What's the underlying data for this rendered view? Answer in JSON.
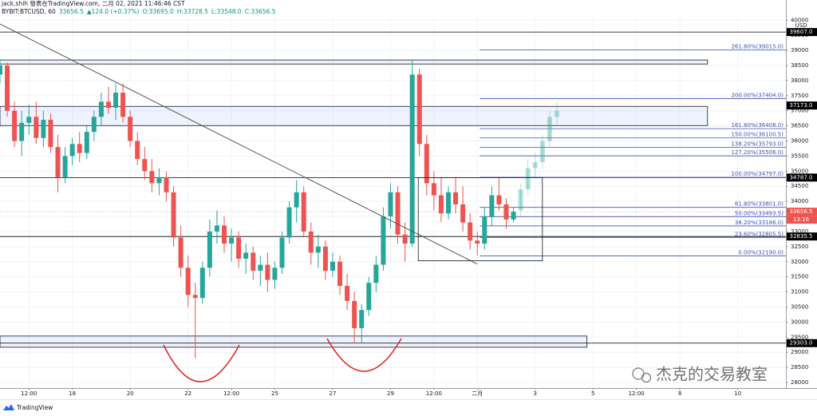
{
  "chart_data": {
    "type": "candlestick",
    "title": "jack.shih 發表在TradingView.com, 二月 02, 2021 11:46:46 CST",
    "info": [
      "BYBIT:BTCUSD, 60",
      "33656.5",
      "▲124.0 (+0.37%)",
      "O:33695.0",
      "H:33728.5",
      "L:33548.0",
      "C:33656.5"
    ],
    "currency": "USD",
    "up_color": "#26a69a",
    "down_color": "#ef5350",
    "xlim": [
      -36,
      616
    ],
    "ylim": [
      27815,
      40140
    ],
    "grid": true,
    "xticks": [
      {
        "value": -12,
        "label": "12:00"
      },
      {
        "value": 24,
        "label": "18"
      },
      {
        "value": 72,
        "label": "20"
      },
      {
        "value": 120,
        "label": "22"
      },
      {
        "value": 156,
        "label": "12:00"
      },
      {
        "value": 192,
        "label": "25"
      },
      {
        "value": 240,
        "label": "27"
      },
      {
        "value": 288,
        "label": "29"
      },
      {
        "value": 324,
        "label": "12:00"
      },
      {
        "value": 360,
        "label": "二月"
      },
      {
        "value": 408,
        "label": "3"
      },
      {
        "value": 456,
        "label": "5"
      },
      {
        "value": 492,
        "label": "12:00"
      },
      {
        "value": 528,
        "label": "8"
      },
      {
        "value": 576,
        "label": "10"
      }
    ],
    "yticks": [
      28000,
      28500,
      29000,
      29500,
      30000,
      30500,
      31000,
      31500,
      32000,
      32500,
      33000,
      33500,
      34000,
      34500,
      35000,
      35500,
      36000,
      36500,
      37000,
      37500,
      38000,
      38500,
      39000,
      39500,
      40000
    ],
    "candles": [
      [
        -36,
        38200,
        38700,
        37900,
        38500
      ],
      [
        -30,
        38500,
        38600,
        36800,
        37000
      ],
      [
        -24,
        37000,
        37300,
        35800,
        36000
      ],
      [
        -18,
        36000,
        37000,
        35500,
        36600
      ],
      [
        -12,
        36600,
        37200,
        36200,
        36800
      ],
      [
        -6,
        36800,
        37300,
        35900,
        36100
      ],
      [
        0,
        36100,
        37000,
        35800,
        36700
      ],
      [
        6,
        36700,
        36900,
        35600,
        35800
      ],
      [
        12,
        35800,
        36200,
        34300,
        34800
      ],
      [
        18,
        34800,
        35800,
        34600,
        35500
      ],
      [
        24,
        35500,
        36100,
        35200,
        35900
      ],
      [
        30,
        35900,
        36300,
        35300,
        35600
      ],
      [
        36,
        35600,
        36500,
        35400,
        36300
      ],
      [
        42,
        36300,
        37000,
        36000,
        36800
      ],
      [
        48,
        36800,
        37600,
        36500,
        37300
      ],
      [
        54,
        37300,
        37800,
        36900,
        37100
      ],
      [
        60,
        37100,
        37900,
        36700,
        37600
      ],
      [
        66,
        37600,
        37900,
        36600,
        36800
      ],
      [
        72,
        36800,
        37000,
        35800,
        36000
      ],
      [
        78,
        36000,
        36300,
        35200,
        35400
      ],
      [
        84,
        35400,
        35800,
        34700,
        35000
      ],
      [
        90,
        35000,
        35400,
        34300,
        34600
      ],
      [
        96,
        34600,
        35100,
        34200,
        34800
      ],
      [
        102,
        34800,
        35000,
        34000,
        34300
      ],
      [
        108,
        34300,
        34500,
        32500,
        32800
      ],
      [
        114,
        32800,
        33200,
        31500,
        31800
      ],
      [
        120,
        31800,
        32200,
        30500,
        30900
      ],
      [
        126,
        30900,
        31300,
        28800,
        30800
      ],
      [
        132,
        30800,
        32000,
        30600,
        31800
      ],
      [
        138,
        31800,
        33400,
        31500,
        33000
      ],
      [
        144,
        33000,
        33700,
        32600,
        33200
      ],
      [
        150,
        33200,
        33500,
        32300,
        32600
      ],
      [
        156,
        32600,
        33100,
        32000,
        32800
      ],
      [
        162,
        32800,
        33000,
        31800,
        32100
      ],
      [
        168,
        32100,
        32600,
        31600,
        32300
      ],
      [
        174,
        32300,
        32500,
        31400,
        31700
      ],
      [
        180,
        31700,
        32200,
        31200,
        31900
      ],
      [
        186,
        31900,
        32300,
        31000,
        31400
      ],
      [
        192,
        31400,
        32000,
        31100,
        31800
      ],
      [
        198,
        31800,
        33000,
        31600,
        32800
      ],
      [
        204,
        32800,
        34000,
        32600,
        33800
      ],
      [
        210,
        33800,
        34700,
        33300,
        34300
      ],
      [
        216,
        34300,
        34500,
        32800,
        33000
      ],
      [
        222,
        33000,
        33300,
        31900,
        32300
      ],
      [
        228,
        32300,
        32900,
        31800,
        32500
      ],
      [
        234,
        32500,
        32700,
        31400,
        31700
      ],
      [
        240,
        31700,
        32300,
        31500,
        32000
      ],
      [
        246,
        32000,
        32200,
        30900,
        31200
      ],
      [
        252,
        31200,
        31600,
        30400,
        30700
      ],
      [
        258,
        30700,
        31000,
        29300,
        29800
      ],
      [
        264,
        29800,
        30600,
        29300,
        30400
      ],
      [
        270,
        30400,
        31500,
        30200,
        31300
      ],
      [
        276,
        31300,
        32200,
        31000,
        31900
      ],
      [
        282,
        31900,
        33800,
        31700,
        33500
      ],
      [
        288,
        33500,
        34600,
        33100,
        34300
      ],
      [
        294,
        34300,
        34500,
        32600,
        32900
      ],
      [
        300,
        32900,
        33300,
        32000,
        32600
      ],
      [
        306,
        32600,
        38700,
        32500,
        38200
      ],
      [
        312,
        38200,
        38400,
        35500,
        35900
      ],
      [
        318,
        35900,
        36200,
        34200,
        34600
      ],
      [
        324,
        34600,
        35000,
        33700,
        34200
      ],
      [
        330,
        34200,
        34800,
        33300,
        33600
      ],
      [
        336,
        33600,
        34500,
        33400,
        34300
      ],
      [
        342,
        34300,
        34800,
        33600,
        33900
      ],
      [
        348,
        33900,
        34500,
        33000,
        33300
      ],
      [
        354,
        33300,
        33600,
        32400,
        32700
      ],
      [
        360,
        32700,
        33000,
        32200,
        32600
      ],
      [
        366,
        32600,
        33800,
        32400,
        33500
      ],
      [
        372,
        33500,
        34500,
        33200,
        34200
      ],
      [
        378,
        34200,
        34800,
        33700,
        33900
      ],
      [
        384,
        33900,
        34100,
        33100,
        33400
      ],
      [
        390,
        33400,
        33800,
        33300,
        33656.5
      ]
    ],
    "projection": [
      [
        396,
        33700,
        34600,
        33500,
        34400
      ],
      [
        402,
        34400,
        35400,
        34200,
        35100
      ],
      [
        408,
        35100,
        35600,
        34800,
        35300
      ],
      [
        414,
        35300,
        36200,
        35100,
        36000
      ],
      [
        420,
        36000,
        37000,
        35800,
        36800
      ],
      [
        426,
        36800,
        37300,
        36500,
        37000
      ]
    ],
    "zones": [
      {
        "from": 38549,
        "to": 38682,
        "x_end": 551
      },
      {
        "from": 36509,
        "to": 37145,
        "x_end": 551
      },
      {
        "from": 29167,
        "to": 29538,
        "x_end": 451
      }
    ],
    "trendline": [
      [
        -36,
        39875
      ],
      [
        360,
        31923
      ]
    ],
    "range_box": {
      "x": [
        311,
        414
      ],
      "y": [
        32030,
        34786
      ]
    },
    "fib": {
      "x_start": 362,
      "color": "#3f51b5",
      "levels": [
        {
          "value": 39015,
          "label": "261.80%(39015.0)"
        },
        {
          "value": 37404,
          "label": "200.00%(37404.0)"
        },
        {
          "value": 36408,
          "label": "161.80%(36408.0)"
        },
        {
          "value": 36100.5,
          "label": "150.00%(36100.5)"
        },
        {
          "value": 35793,
          "label": "138.20%(35793.0)"
        },
        {
          "value": 35506,
          "label": "127.20%(35506.0)"
        },
        {
          "value": 34797,
          "label": "100.00%(34797.0)"
        },
        {
          "value": 33801,
          "label": "61.80%(33801.0)"
        },
        {
          "value": 33493.5,
          "label": "50.00%(33493.5)"
        },
        {
          "value": 33186,
          "label": "38.20%(33186.0)"
        },
        {
          "value": 32805.5,
          "label": "23.60%(32805.5)"
        },
        {
          "value": 32190,
          "label": "0.00%(32190.0)"
        }
      ]
    },
    "price_tags": [
      {
        "value": 39607,
        "label": "39607.0",
        "color": "#000000",
        "line": "solid"
      },
      {
        "value": 37173,
        "label": "37173.0",
        "color": "#000000",
        "line": "none"
      },
      {
        "value": 34787,
        "label": "34787.0",
        "color": "#000000",
        "line": "solid"
      },
      {
        "value": 33656.5,
        "label": "33656.5",
        "color": "#ef5350",
        "line": "dotted"
      },
      {
        "value": 32835.5,
        "label": "32835.5",
        "color": "#000000",
        "line": "solid"
      },
      {
        "value": 29303,
        "label": "29303.0",
        "color": "#000000",
        "line": "solid"
      }
    ],
    "countdown": "13:16",
    "watermark": "杰克的交易教室",
    "brand": "TradingView"
  }
}
